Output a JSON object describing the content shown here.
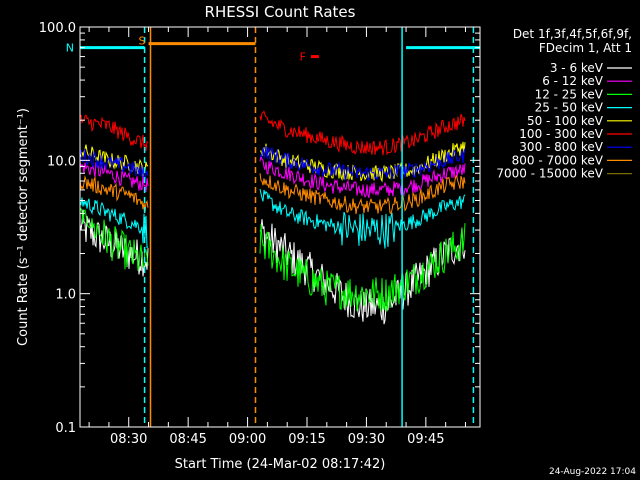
{
  "chart_data": {
    "type": "line",
    "title": "RHESSI Count Rates",
    "xlabel": "Start Time (24-Mar-02 08:17:42)",
    "ylabel": "Count Rate (s⁻¹ detector segment⁻¹)",
    "x_range": [
      "08:17:42",
      "09:58:40"
    ],
    "y_scale": "log",
    "ylim": [
      0.1,
      100.0
    ],
    "y_ticks": [
      "0.1",
      "1.0",
      "10.0",
      "100.0"
    ],
    "x_ticks": [
      "08:30",
      "08:45",
      "09:00",
      "09:15",
      "09:30",
      "09:45"
    ],
    "grid": false,
    "legend_header": [
      "Det 1f,3f,4f,5f,6f,9f,",
      "FDecim 1, Att 1"
    ],
    "series": [
      {
        "name": "3 - 6 keV",
        "color": "#ffffff",
        "segments": [
          {
            "x": [
              "08:17:42",
              "08:25",
              "08:30",
              "08:35"
            ],
            "y": [
              3.2,
              2.4,
              2.0,
              1.8
            ]
          },
          {
            "x": [
              "09:03",
              "09:10",
              "09:20",
              "09:28",
              "09:35",
              "09:42",
              "09:50",
              "09:55"
            ],
            "y": [
              3.0,
              2.0,
              1.2,
              0.8,
              0.8,
              1.2,
              2.0,
              2.5
            ]
          }
        ]
      },
      {
        "name": "6 - 12 keV",
        "color": "#ff00ff",
        "segments": [
          {
            "x": [
              "08:17:42",
              "08:25",
              "08:30",
              "08:35"
            ],
            "y": [
              9.0,
              8.0,
              7.0,
              6.5
            ]
          },
          {
            "x": [
              "09:03",
              "09:10",
              "09:20",
              "09:28",
              "09:35",
              "09:42",
              "09:50",
              "09:55"
            ],
            "y": [
              9.5,
              8.0,
              6.5,
              6.0,
              6.0,
              6.5,
              8.0,
              8.5
            ]
          }
        ]
      },
      {
        "name": "12 - 25 keV",
        "color": "#00ff00",
        "segments": [
          {
            "x": [
              "08:17:42",
              "08:25",
              "08:30",
              "08:35"
            ],
            "y": [
              4.0,
              2.5,
              2.0,
              1.6
            ]
          },
          {
            "x": [
              "09:03",
              "09:10",
              "09:20",
              "09:28",
              "09:35",
              "09:42",
              "09:50",
              "09:55"
            ],
            "y": [
              2.5,
              1.6,
              1.1,
              1.0,
              1.0,
              1.3,
              2.0,
              2.5
            ]
          }
        ]
      },
      {
        "name": "25 - 50 keV",
        "color": "#00ffff",
        "segments": [
          {
            "x": [
              "08:17:42",
              "08:25",
              "08:30",
              "08:35"
            ],
            "y": [
              5.0,
              4.0,
              3.5,
              3.0
            ]
          },
          {
            "x": [
              "09:03",
              "09:10",
              "09:20",
              "09:28",
              "09:35",
              "09:42",
              "09:50",
              "09:55"
            ],
            "y": [
              5.5,
              4.0,
              3.3,
              3.0,
              3.0,
              3.5,
              4.5,
              5.0
            ]
          }
        ]
      },
      {
        "name": "50 - 100 keV",
        "color": "#ffff00",
        "segments": [
          {
            "x": [
              "08:17:42",
              "08:25",
              "08:30",
              "08:35"
            ],
            "y": [
              12.0,
              10.0,
              9.5,
              8.5
            ]
          },
          {
            "x": [
              "09:03",
              "09:10",
              "09:20",
              "09:28",
              "09:35",
              "09:42",
              "09:50",
              "09:55"
            ],
            "y": [
              12.5,
              10.0,
              8.5,
              8.0,
              8.0,
              8.5,
              11.0,
              13.0
            ]
          }
        ]
      },
      {
        "name": "100 - 300 keV",
        "color": "#ff0000",
        "segments": [
          {
            "x": [
              "08:17:42",
              "08:25",
              "08:30",
              "08:35"
            ],
            "y": [
              20.0,
              18.0,
              15.0,
              13.0
            ]
          },
          {
            "x": [
              "09:03",
              "09:10",
              "09:20",
              "09:28",
              "09:35",
              "09:42",
              "09:50",
              "09:55"
            ],
            "y": [
              21.0,
              17.0,
              14.0,
              12.5,
              12.5,
              14.0,
              18.0,
              20.0
            ]
          }
        ]
      },
      {
        "name": "300 - 800 keV",
        "color": "#0000ff",
        "segments": [
          {
            "x": [
              "08:17:42",
              "08:25",
              "08:30",
              "08:35"
            ],
            "y": [
              11.0,
              9.5,
              9.0,
              7.5
            ]
          },
          {
            "x": [
              "09:03",
              "09:10",
              "09:20",
              "09:28",
              "09:35",
              "09:42",
              "09:50",
              "09:55"
            ],
            "y": [
              12.0,
              10.0,
              8.5,
              8.0,
              8.0,
              8.5,
              10.0,
              11.0
            ]
          }
        ]
      },
      {
        "name": "800 - 7000 keV",
        "color": "#ff8c00",
        "segments": [
          {
            "x": [
              "08:17:42",
              "08:25",
              "08:30",
              "08:35"
            ],
            "y": [
              7.0,
              6.0,
              5.5,
              4.5
            ]
          },
          {
            "x": [
              "09:03",
              "09:10",
              "09:20",
              "09:28",
              "09:35",
              "09:42",
              "09:50",
              "09:55"
            ],
            "y": [
              7.5,
              6.0,
              5.0,
              4.5,
              4.5,
              5.0,
              6.5,
              7.0
            ]
          }
        ]
      },
      {
        "name": "7000 - 15000 keV",
        "color": "#7a6c00",
        "segments": []
      }
    ],
    "annotations": [
      {
        "label": "N",
        "color": "#00ffff",
        "level": 70.0,
        "x_start": "08:17:42",
        "x_end": "08:34",
        "x_end2": "09:40",
        "x_end3": "09:58:40"
      },
      {
        "label": "S",
        "color": "#ff8c00",
        "level": 75.0,
        "x_start": "08:35",
        "x_end": "09:02"
      },
      {
        "label": "F",
        "color": "#ff0000",
        "level": 60.0,
        "x_start": "09:16",
        "x_end": "09:18"
      }
    ],
    "vertical_markers": [
      {
        "x": "08:34",
        "color": "#00ffff",
        "style": "dashed"
      },
      {
        "x": "08:35:30",
        "color": "#ff8c00",
        "style": "solid"
      },
      {
        "x": "09:02",
        "color": "#ff8c00",
        "style": "dashed"
      },
      {
        "x": "09:39",
        "color": "#00ffff",
        "style": "solid"
      },
      {
        "x": "09:57",
        "color": "#00ffff",
        "style": "dashed"
      }
    ]
  },
  "footer": {
    "timestamp": "24-Aug-2022 17:04"
  }
}
